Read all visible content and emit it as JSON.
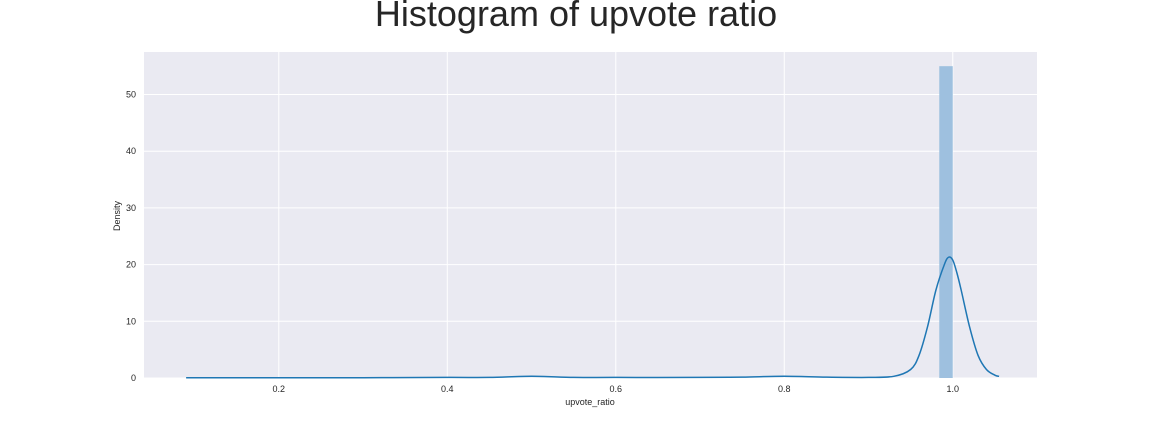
{
  "chart_data": {
    "type": "bar",
    "title": "Histogram of upvote ratio",
    "xlabel": "upvote_ratio",
    "ylabel": "Density",
    "xlim": [
      0.04,
      1.1
    ],
    "ylim": [
      0,
      57.5
    ],
    "xticks": [
      "0.2",
      "0.4",
      "0.6",
      "0.8",
      "1.0"
    ],
    "yticks": [
      "0",
      "10",
      "20",
      "30",
      "40",
      "50"
    ],
    "grid": true,
    "colors": {
      "background": "#eaeaf2",
      "grid": "#ffffff",
      "bar": "#9ec0df",
      "kde_line": "#1f77b4",
      "text": "#262626"
    },
    "histogram": {
      "bins": [
        {
          "x0": 0.984,
          "x1": 1.0,
          "density": 55.0
        }
      ]
    },
    "kde": {
      "x": [
        0.09,
        0.2,
        0.3,
        0.4,
        0.45,
        0.5,
        0.55,
        0.6,
        0.7,
        0.75,
        0.8,
        0.85,
        0.9,
        0.93,
        0.95,
        0.96,
        0.97,
        0.98,
        0.99,
        0.995,
        1.0,
        1.005,
        1.01,
        1.02,
        1.03,
        1.04,
        1.05,
        1.055
      ],
      "y": [
        0.05,
        0.05,
        0.05,
        0.1,
        0.1,
        0.3,
        0.1,
        0.1,
        0.1,
        0.15,
        0.3,
        0.15,
        0.1,
        0.3,
        1.5,
        4.0,
        9.0,
        15.5,
        20.0,
        21.3,
        20.8,
        18.5,
        15.5,
        9.0,
        4.0,
        1.5,
        0.5,
        0.3
      ]
    }
  }
}
